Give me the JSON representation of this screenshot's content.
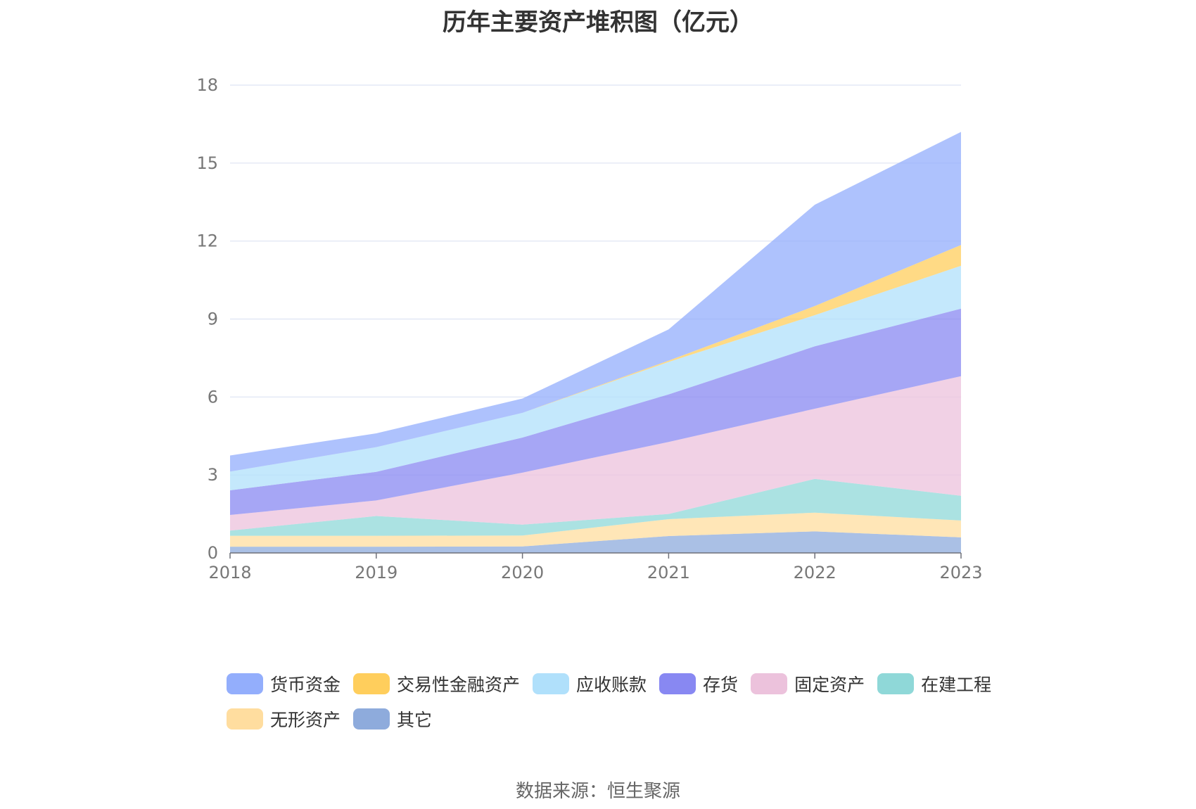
{
  "chart_data": {
    "type": "area",
    "stacked": true,
    "title": "历年主要资产堆积图（亿元）",
    "x": [
      "2018",
      "2019",
      "2020",
      "2021",
      "2022",
      "2023"
    ],
    "ylim": [
      0,
      18
    ],
    "yticks": [
      0,
      3,
      6,
      9,
      12,
      15,
      18
    ],
    "grid": true,
    "legend_position": "bottom",
    "series": [
      {
        "name": "其它",
        "color": "#8eabdc",
        "values": [
          0.24,
          0.24,
          0.25,
          0.65,
          0.83,
          0.6
        ]
      },
      {
        "name": "无形资产",
        "color": "#ffdd9f",
        "values": [
          0.42,
          0.42,
          0.42,
          0.65,
          0.72,
          0.65
        ]
      },
      {
        "name": "在建工程",
        "color": "#8fd8d8",
        "values": [
          0.2,
          0.76,
          0.42,
          0.2,
          1.3,
          0.95
        ]
      },
      {
        "name": "固定资产",
        "color": "#ecc2dc",
        "values": [
          0.6,
          0.6,
          2.0,
          2.77,
          2.7,
          4.6
        ]
      },
      {
        "name": "存货",
        "color": "#8888f2",
        "values": [
          0.95,
          1.1,
          1.35,
          1.83,
          2.4,
          2.6
        ]
      },
      {
        "name": "应收账款",
        "color": "#b0e0fb",
        "values": [
          0.72,
          0.95,
          0.95,
          1.25,
          1.2,
          1.65
        ]
      },
      {
        "name": "交易性金融资产",
        "color": "#ffce5c",
        "values": [
          0.0,
          0.0,
          0.0,
          0.05,
          0.35,
          0.8
        ]
      },
      {
        "name": "货币资金",
        "color": "#93aefc",
        "values": [
          0.62,
          0.53,
          0.55,
          1.2,
          3.9,
          4.35
        ]
      }
    ]
  },
  "legend": {
    "order": [
      "货币资金",
      "交易性金融资产",
      "应收账款",
      "存货",
      "固定资产",
      "在建工程",
      "无形资产",
      "其它"
    ]
  },
  "source_text": "数据来源：恒生聚源"
}
